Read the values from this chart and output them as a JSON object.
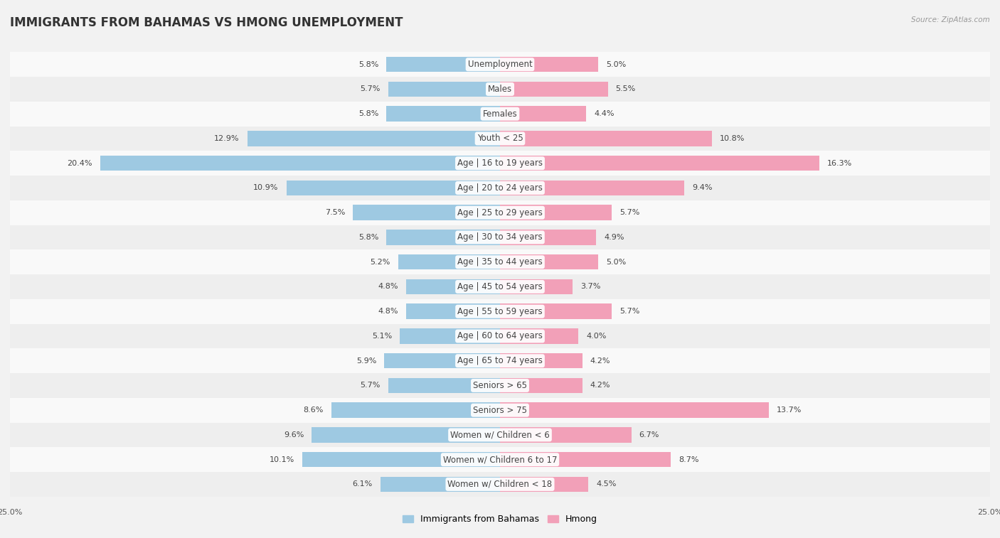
{
  "title": "IMMIGRANTS FROM BAHAMAS VS HMONG UNEMPLOYMENT",
  "source": "Source: ZipAtlas.com",
  "categories": [
    "Unemployment",
    "Males",
    "Females",
    "Youth < 25",
    "Age | 16 to 19 years",
    "Age | 20 to 24 years",
    "Age | 25 to 29 years",
    "Age | 30 to 34 years",
    "Age | 35 to 44 years",
    "Age | 45 to 54 years",
    "Age | 55 to 59 years",
    "Age | 60 to 64 years",
    "Age | 65 to 74 years",
    "Seniors > 65",
    "Seniors > 75",
    "Women w/ Children < 6",
    "Women w/ Children 6 to 17",
    "Women w/ Children < 18"
  ],
  "bahamas_values": [
    5.8,
    5.7,
    5.8,
    12.9,
    20.4,
    10.9,
    7.5,
    5.8,
    5.2,
    4.8,
    4.8,
    5.1,
    5.9,
    5.7,
    8.6,
    9.6,
    10.1,
    6.1
  ],
  "hmong_values": [
    5.0,
    5.5,
    4.4,
    10.8,
    16.3,
    9.4,
    5.7,
    4.9,
    5.0,
    3.7,
    5.7,
    4.0,
    4.2,
    4.2,
    13.7,
    6.7,
    8.7,
    4.5
  ],
  "bahamas_color": "#9ec9e2",
  "hmong_color": "#f2a0b8",
  "background_color": "#f2f2f2",
  "row_color_light": "#f9f9f9",
  "row_color_dark": "#eeeeee",
  "axis_max": 25.0,
  "legend_bahamas": "Immigrants from Bahamas",
  "legend_hmong": "Hmong",
  "title_fontsize": 12,
  "label_fontsize": 8.5,
  "value_fontsize": 8.0
}
